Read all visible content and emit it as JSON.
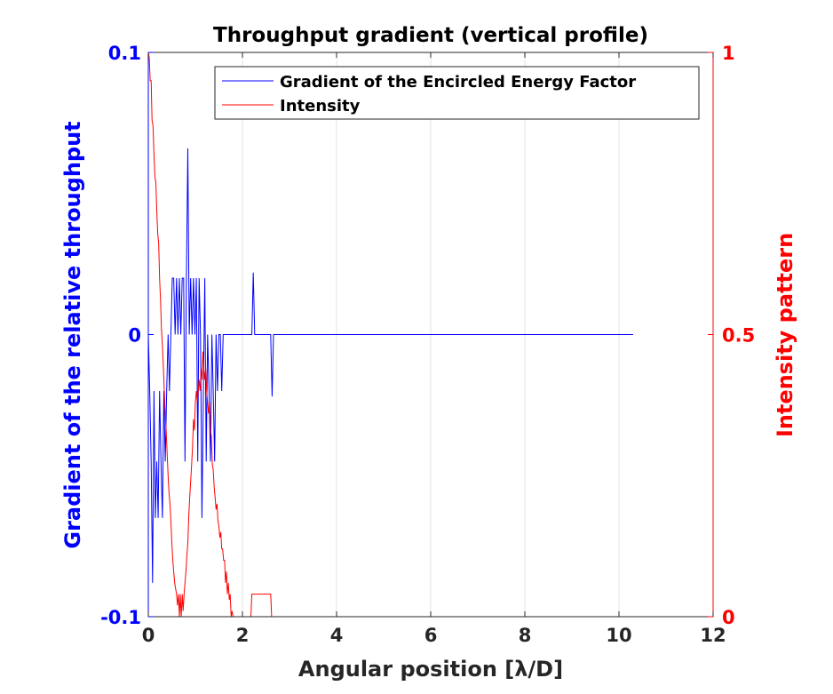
{
  "chart_data": {
    "type": "line",
    "title": "Throughput gradient (vertical profile)",
    "xlabel": "Angular position [λ/D]",
    "ylabel_left": "Gradient of the relative throughput",
    "ylabel_right": "Intensity pattern",
    "xlim": [
      0,
      12
    ],
    "ylim_left": [
      -0.1,
      0.1
    ],
    "ylim_right": [
      0,
      1
    ],
    "xticks": [
      0,
      2,
      4,
      6,
      8,
      10,
      12
    ],
    "yticks_left": [
      -0.1,
      0,
      0.1
    ],
    "yticks_right": [
      0,
      0.5,
      1
    ],
    "grid": "x-only",
    "legend_position": "top-right",
    "colors": {
      "left_axis": "#0000ff",
      "right_axis": "#ff0000",
      "gradient": "#0000ff",
      "intensity": "#ff0000"
    },
    "series": [
      {
        "name": "Gradient of the Encircled Energy Factor",
        "axis": "left",
        "color": "#0000ff",
        "x": [
          0,
          0.03,
          0.06,
          0.09,
          0.12,
          0.15,
          0.18,
          0.21,
          0.24,
          0.27,
          0.3,
          0.33,
          0.36,
          0.39,
          0.42,
          0.45,
          0.48,
          0.51,
          0.54,
          0.57,
          0.6,
          0.63,
          0.66,
          0.69,
          0.72,
          0.75,
          0.78,
          0.81,
          0.84,
          0.87,
          0.9,
          0.93,
          0.96,
          0.99,
          1.02,
          1.05,
          1.08,
          1.11,
          1.14,
          1.17,
          1.2,
          1.23,
          1.26,
          1.29,
          1.32,
          1.35,
          1.38,
          1.41,
          1.44,
          1.47,
          1.5,
          1.53,
          1.56,
          1.59,
          1.62,
          1.65,
          1.68,
          1.71,
          1.74,
          1.77,
          1.8,
          1.83,
          1.86,
          2.1,
          2.2,
          2.23,
          2.26,
          2.3,
          2.6,
          2.63,
          2.66,
          2.7,
          10.3
        ],
        "values": [
          0,
          -0.02,
          -0.045,
          -0.088,
          -0.02,
          -0.065,
          -0.045,
          -0.065,
          -0.02,
          -0.045,
          -0.065,
          -0.02,
          -0.045,
          -0.02,
          0,
          -0.02,
          0,
          0.02,
          0.02,
          0,
          0.02,
          0,
          0.02,
          0,
          0.02,
          0.02,
          -0.045,
          0.02,
          0.066,
          0,
          0.02,
          0,
          0.02,
          0,
          0.02,
          -0.045,
          0.02,
          0,
          -0.065,
          -0.02,
          0.02,
          -0.045,
          0,
          -0.02,
          -0.045,
          0,
          -0.02,
          -0.045,
          0,
          -0.02,
          0,
          0,
          -0.02,
          0,
          0,
          0,
          0,
          0,
          0,
          0,
          0,
          0,
          0,
          0,
          0,
          0.022,
          0,
          0,
          0,
          -0.022,
          0,
          0,
          0
        ]
      },
      {
        "name": "Intensity",
        "axis": "right",
        "color": "#ff0000",
        "x": [
          0,
          0.02,
          0.04,
          0.06,
          0.08,
          0.1,
          0.12,
          0.14,
          0.16,
          0.18,
          0.2,
          0.22,
          0.24,
          0.26,
          0.28,
          0.3,
          0.32,
          0.34,
          0.36,
          0.38,
          0.4,
          0.42,
          0.44,
          0.46,
          0.48,
          0.5,
          0.52,
          0.54,
          0.56,
          0.58,
          0.6,
          0.62,
          0.64,
          0.66,
          0.68,
          0.7,
          0.72,
          0.74,
          0.76,
          0.78,
          0.8,
          0.82,
          0.84,
          0.86,
          0.88,
          0.9,
          0.92,
          0.94,
          0.96,
          0.98,
          1.0,
          1.02,
          1.04,
          1.06,
          1.08,
          1.1,
          1.12,
          1.14,
          1.16,
          1.18,
          1.2,
          1.22,
          1.24,
          1.26,
          1.28,
          1.3,
          1.32,
          1.34,
          1.36,
          1.38,
          1.4,
          1.42,
          1.44,
          1.46,
          1.48,
          1.5,
          1.52,
          1.54,
          1.56,
          1.58,
          1.6,
          1.62,
          1.64,
          1.66,
          1.68,
          1.7,
          1.72,
          1.74,
          1.76,
          1.78,
          1.8,
          1.85,
          2.18,
          2.2,
          2.22,
          2.6,
          2.62,
          2.64,
          2.66,
          10.3
        ],
        "values": [
          1.0,
          0.99,
          0.95,
          0.95,
          0.88,
          0.87,
          0.82,
          0.78,
          0.77,
          0.72,
          0.68,
          0.66,
          0.6,
          0.56,
          0.51,
          0.48,
          0.44,
          0.4,
          0.36,
          0.33,
          0.29,
          0.25,
          0.22,
          0.2,
          0.17,
          0.13,
          0.1,
          0.08,
          0.06,
          0.05,
          0.04,
          0.02,
          0.04,
          0.0,
          0.04,
          0.0,
          0.04,
          0.01,
          0.04,
          0.06,
          0.08,
          0.11,
          0.13,
          0.18,
          0.21,
          0.24,
          0.27,
          0.3,
          0.35,
          0.33,
          0.38,
          0.4,
          0.38,
          0.4,
          0.42,
          0.4,
          0.44,
          0.42,
          0.47,
          0.44,
          0.42,
          0.44,
          0.4,
          0.38,
          0.36,
          0.38,
          0.33,
          0.32,
          0.27,
          0.26,
          0.23,
          0.21,
          0.19,
          0.2,
          0.17,
          0.16,
          0.14,
          0.15,
          0.12,
          0.12,
          0.1,
          0.1,
          0.06,
          0.08,
          0.04,
          0.06,
          0.03,
          0.04,
          0.0,
          0.01,
          0.0,
          0.0,
          0.0,
          0.04,
          0.04,
          0.04,
          0.0,
          0.0,
          0.0,
          0.0
        ]
      }
    ]
  }
}
